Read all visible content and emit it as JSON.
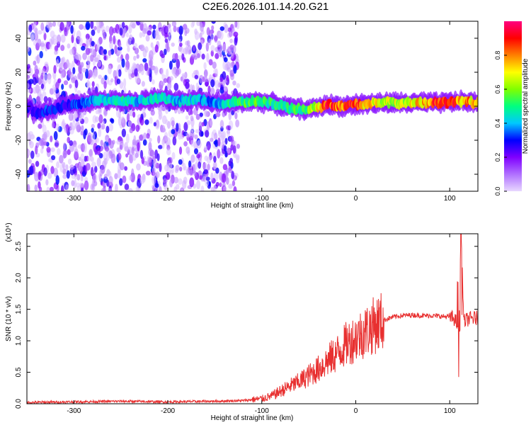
{
  "title": "C2E6.2026.101.14.20.G21",
  "chart_data": [
    {
      "type": "heatmap",
      "xlabel": "Height of straight line (km)",
      "ylabel": "Frequency (Hz)",
      "xlim": [
        -350,
        130
      ],
      "ylim": [
        -50,
        50
      ],
      "x_ticks": [
        -300,
        -200,
        -100,
        0,
        100
      ],
      "y_ticks": [
        -40,
        -20,
        0,
        20,
        40
      ],
      "colorbar": {
        "label": "Normalized spectral amplitude",
        "range": [
          0,
          1
        ],
        "ticks": [
          0.0,
          0.2,
          0.4,
          0.6,
          0.8
        ],
        "tick_labels": [
          "0.0",
          "0.2",
          "0.4",
          "0.6",
          "0.8"
        ],
        "colors": [
          "#e8d8ff",
          "#b070ff",
          "#8000ff",
          "#0000ff",
          "#00c8ff",
          "#00ff80",
          "#80ff00",
          "#ffff00",
          "#ff8000",
          "#ff0000",
          "#ff0080"
        ]
      },
      "ridge": {
        "x": [
          -345,
          -330,
          -310,
          -290,
          -270,
          -250,
          -230,
          -210,
          -190,
          -170,
          -150,
          -130,
          -110,
          -90,
          -70,
          -50,
          -30,
          -15,
          0,
          30,
          60,
          90,
          110,
          130
        ],
        "freq": [
          -4,
          -3,
          0,
          2,
          4,
          3,
          3,
          5,
          3,
          4,
          2,
          2,
          3,
          2,
          -1,
          -2,
          1,
          0,
          1,
          2,
          2,
          2,
          3,
          2
        ],
        "amplitude": [
          0.3,
          0.35,
          0.3,
          0.4,
          0.45,
          0.5,
          0.45,
          0.5,
          0.45,
          0.45,
          0.4,
          0.55,
          0.6,
          0.55,
          0.55,
          0.6,
          0.95,
          0.9,
          0.95,
          0.7,
          0.75,
          0.95,
          0.9,
          0.8
        ]
      },
      "noise_extent_x": [
        -350,
        -125
      ]
    },
    {
      "type": "line",
      "xlabel": "Height of straight line (km)",
      "ylabel": "SNR (10 * v/v)",
      "y_multiplier": "(x10⁴)",
      "xlim": [
        -350,
        130
      ],
      "ylim": [
        0,
        2.7
      ],
      "x_ticks": [
        -300,
        -200,
        -100,
        0,
        100
      ],
      "y_ticks": [
        0.0,
        0.5,
        1.0,
        1.5,
        2.0,
        2.5
      ],
      "y_tick_labels": [
        "0.0",
        "0.5",
        "1.0",
        "1.5",
        "2.0",
        "2.5"
      ],
      "color": "#e83030",
      "x": [
        -350,
        -300,
        -250,
        -200,
        -150,
        -120,
        -100,
        -90,
        -80,
        -70,
        -60,
        -50,
        -40,
        -30,
        -20,
        -10,
        0,
        10,
        20,
        30,
        40,
        50,
        60,
        70,
        80,
        90,
        100,
        105,
        110,
        112,
        115,
        120,
        130
      ],
      "y": [
        0.02,
        0.03,
        0.04,
        0.03,
        0.04,
        0.05,
        0.08,
        0.12,
        0.2,
        0.28,
        0.35,
        0.45,
        0.55,
        0.68,
        0.8,
        0.95,
        1.05,
        1.15,
        1.25,
        1.33,
        1.38,
        1.4,
        1.41,
        1.4,
        1.4,
        1.39,
        1.38,
        1.35,
        1.2,
        2.7,
        1.3,
        1.35,
        1.36
      ]
    }
  ]
}
